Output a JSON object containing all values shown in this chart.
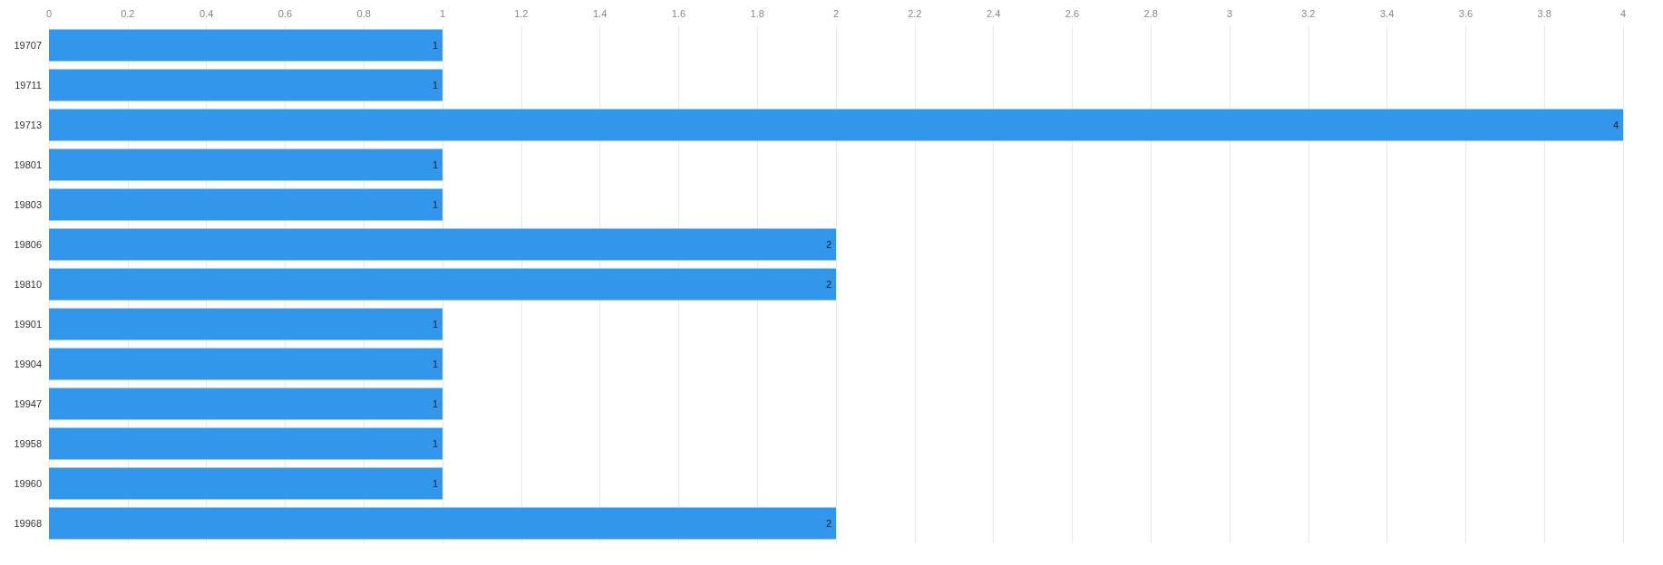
{
  "chart_data": {
    "type": "bar",
    "orientation": "horizontal",
    "categories": [
      "19707",
      "19711",
      "19713",
      "19801",
      "19803",
      "19806",
      "19810",
      "19901",
      "19904",
      "19947",
      "19958",
      "19960",
      "19968"
    ],
    "values": [
      1,
      1,
      4,
      1,
      1,
      2,
      2,
      1,
      1,
      1,
      1,
      1,
      2
    ],
    "color": "#3296eb",
    "xlim": [
      0,
      4
    ],
    "xticks": [
      0,
      0.2,
      0.4,
      0.6,
      0.8,
      1,
      1.2,
      1.4,
      1.6,
      1.8,
      2,
      2.2,
      2.4,
      2.6,
      2.8,
      3,
      3.2,
      3.4,
      3.6,
      3.8,
      4
    ],
    "grid": "x",
    "data_labels": true
  }
}
